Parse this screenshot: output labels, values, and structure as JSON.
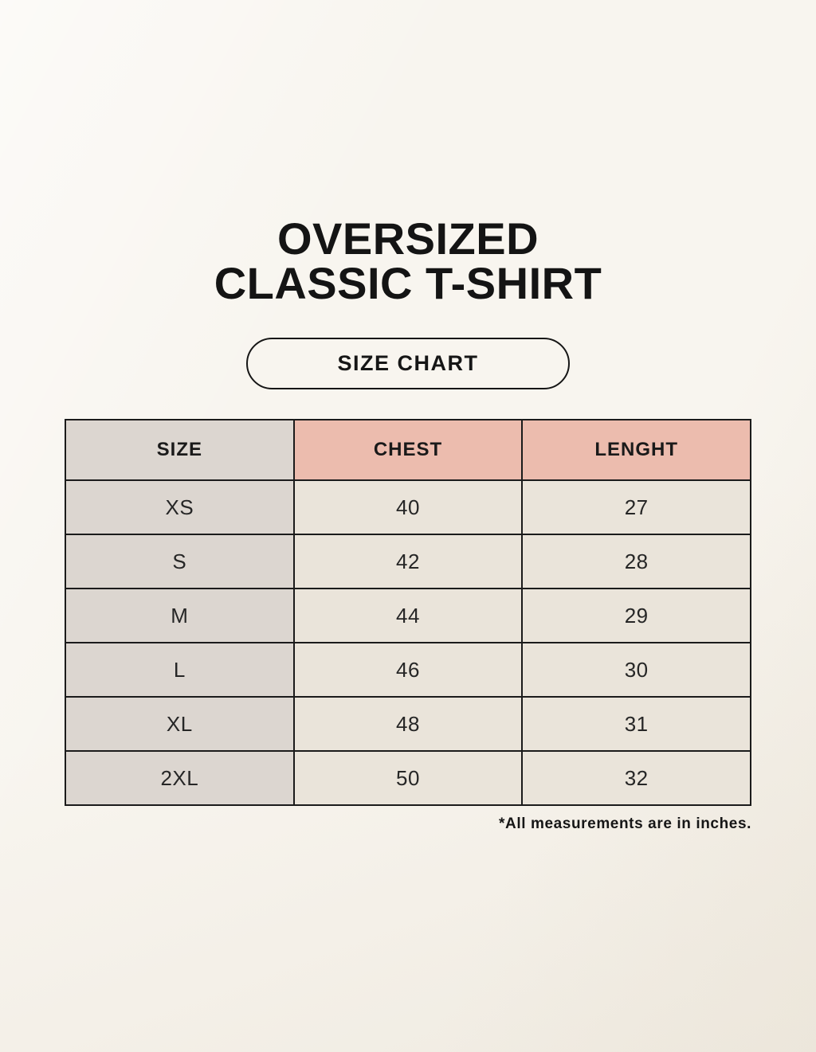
{
  "title": {
    "line1": "OVERSIZED",
    "line2": "CLASSIC T-SHIRT"
  },
  "badge": {
    "label": "SIZE CHART"
  },
  "footnote": "*All measurements are in inches.",
  "colors": {
    "background": "#f6f2ea",
    "accent_pink": "#ecbcae",
    "neutral_gray": "#dcd6d0",
    "cell_cream": "#eae4da",
    "border": "#1b1b1b",
    "text": "#1a1a1a"
  },
  "chart_data": {
    "type": "table",
    "title": "OVERSIZED CLASSIC T-SHIRT — SIZE CHART",
    "columns": [
      "SIZE",
      "CHEST",
      "LENGHT"
    ],
    "rows": [
      [
        "XS",
        "40",
        "27"
      ],
      [
        "S",
        "42",
        "28"
      ],
      [
        "M",
        "44",
        "29"
      ],
      [
        "L",
        "46",
        "30"
      ],
      [
        "XL",
        "48",
        "31"
      ],
      [
        "2XL",
        "50",
        "32"
      ]
    ],
    "units": "inches",
    "note": "*All measurements are in inches.",
    "layout_hints": {
      "header_row_colors": [
        "#dcd6d0",
        "#ecbcae",
        "#ecbcae"
      ],
      "size_column_color": "#dcd6d0",
      "data_cell_color": "#eae4da",
      "grid": true
    }
  }
}
